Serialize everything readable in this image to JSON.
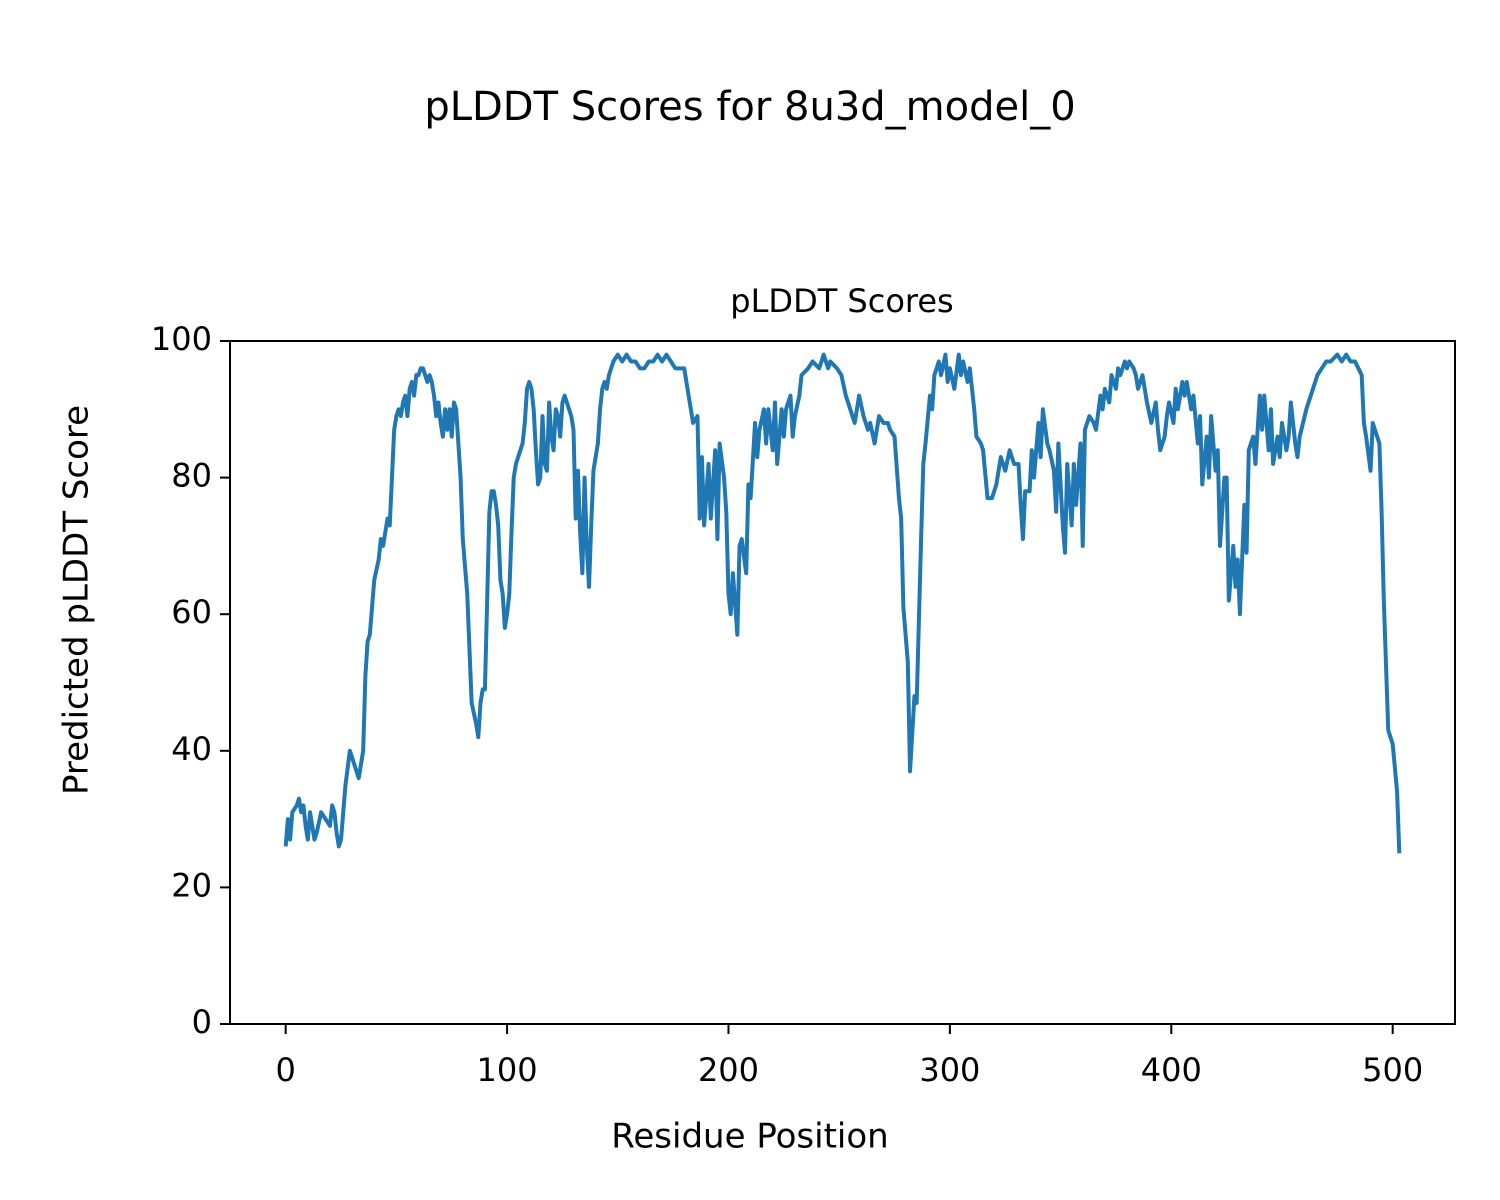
{
  "chart_data": {
    "type": "line",
    "title": "pLDDT Scores for 8u3d_model_0",
    "subtitle": "pLDDT Scores",
    "xlabel": "Residue Position",
    "ylabel": "Predicted pLDDT Score",
    "color": "#1f77b4",
    "grid": false,
    "xlim": [
      -25.15,
      528.15
    ],
    "ylim": [
      0,
      100
    ],
    "xticks": [
      0,
      100,
      200,
      300,
      400,
      500
    ],
    "yticks": [
      0,
      20,
      40,
      60,
      80,
      100
    ],
    "x": [
      0,
      1,
      2,
      3,
      5,
      6,
      7,
      8,
      9,
      10,
      11,
      12,
      13,
      14,
      16,
      18,
      20,
      21,
      22,
      23,
      24,
      25,
      26,
      27,
      29,
      31,
      33,
      35,
      36,
      37,
      38,
      39,
      40,
      42,
      43,
      44,
      45,
      46,
      47,
      48,
      49,
      50,
      51,
      52,
      53,
      54,
      55,
      56,
      57,
      58,
      59,
      60,
      61,
      62,
      63,
      64,
      65,
      66,
      67,
      68,
      69,
      70,
      71,
      72,
      73,
      74,
      75,
      76,
      77,
      78,
      79,
      80,
      82,
      84,
      86,
      87,
      88,
      89,
      90,
      91,
      92,
      93,
      94,
      95,
      96,
      97,
      98,
      99,
      100,
      101,
      102,
      103,
      104,
      105,
      106,
      107,
      108,
      109,
      110,
      111,
      112,
      113,
      114,
      115,
      116,
      117,
      118,
      119,
      120,
      121,
      122,
      123,
      124,
      125,
      126,
      127,
      128,
      129,
      130,
      131,
      132,
      133,
      134,
      135,
      136,
      137,
      138,
      139,
      140,
      141,
      142,
      143,
      144,
      145,
      146,
      147,
      148,
      150,
      152,
      154,
      156,
      158,
      160,
      162,
      164,
      166,
      168,
      170,
      172,
      174,
      176,
      178,
      180,
      182,
      184,
      186,
      187,
      188,
      189,
      191,
      192,
      194,
      195,
      196,
      198,
      199,
      200,
      201,
      202,
      204,
      205,
      206,
      208,
      209,
      210,
      212,
      213,
      214,
      216,
      217,
      218,
      220,
      221,
      222,
      224,
      225,
      226,
      228,
      229,
      230,
      232,
      233,
      236,
      238,
      241,
      243,
      245,
      246,
      249,
      251,
      253,
      255,
      257,
      259,
      261,
      263,
      264,
      266,
      268,
      270,
      272,
      273,
      275,
      277,
      278,
      279,
      281,
      282,
      284,
      285,
      287,
      288,
      289,
      291,
      292,
      293,
      295,
      296,
      298,
      299,
      300,
      302,
      304,
      305,
      306,
      308,
      309,
      311,
      312,
      314,
      315,
      317,
      319,
      321,
      323,
      325,
      327,
      329,
      331,
      332,
      333,
      334,
      336,
      337,
      338,
      340,
      341,
      342,
      344,
      345,
      347,
      348,
      349,
      351,
      352,
      353,
      355,
      356,
      357,
      359,
      360,
      361,
      363,
      365,
      366,
      368,
      369,
      370,
      372,
      373,
      375,
      376,
      377,
      379,
      380,
      381,
      383,
      384,
      385,
      387,
      389,
      391,
      393,
      394,
      395,
      397,
      398,
      399,
      401,
      402,
      403,
      405,
      406,
      407,
      409,
      410,
      412,
      413,
      414,
      416,
      417,
      418,
      420,
      421,
      422,
      424,
      425,
      426,
      428,
      429,
      430,
      431,
      433,
      434,
      435,
      437,
      438,
      440,
      441,
      442,
      444,
      445,
      446,
      448,
      449,
      450,
      452,
      453,
      454,
      456,
      457,
      458,
      461,
      463,
      466,
      468,
      470,
      472,
      475,
      477,
      479,
      481,
      483,
      486,
      487,
      488,
      490,
      491,
      492,
      494,
      495,
      496,
      498,
      499,
      500,
      502,
      503
    ],
    "values": [
      26,
      30,
      27,
      31,
      32,
      33,
      31,
      32,
      29,
      27,
      31,
      29,
      27,
      28,
      31,
      30,
      29,
      32,
      31,
      28,
      26,
      27,
      31,
      35,
      40,
      38,
      36,
      40,
      51,
      56,
      57,
      61,
      65,
      68,
      71,
      70,
      72,
      74,
      73,
      80,
      87,
      89,
      90,
      89,
      91,
      92,
      89,
      93,
      94,
      92,
      95,
      95,
      96,
      96,
      95,
      94,
      95,
      94,
      92,
      89,
      91,
      88,
      86,
      90,
      87,
      90,
      86,
      91,
      90,
      85,
      80,
      71,
      63,
      47,
      44,
      42,
      47,
      49,
      49,
      62,
      75,
      78,
      78,
      76,
      73,
      65,
      63,
      58,
      60,
      63,
      72,
      80,
      82,
      83,
      84,
      85,
      88,
      93,
      94,
      93,
      90,
      84,
      79,
      80,
      89,
      82,
      81,
      91,
      86,
      84,
      90,
      89,
      86,
      91,
      92,
      91,
      90,
      89,
      87,
      74,
      81,
      72,
      66,
      80,
      70,
      64,
      73,
      81,
      83,
      85,
      90,
      93,
      94,
      93,
      95,
      96,
      97,
      98,
      97,
      98,
      97,
      97,
      96,
      96,
      97,
      97,
      98,
      97,
      98,
      97,
      96,
      96,
      96,
      92,
      88,
      89,
      74,
      83,
      73,
      82,
      74,
      84,
      71,
      85,
      80,
      75,
      63,
      60,
      66,
      57,
      70,
      71,
      66,
      79,
      77,
      88,
      83,
      87,
      90,
      85,
      90,
      84,
      91,
      82,
      90,
      86,
      90,
      92,
      86,
      89,
      92,
      95,
      96,
      97,
      96,
      98,
      96,
      97,
      96,
      95,
      92,
      90,
      88,
      92,
      89,
      87,
      88,
      85,
      89,
      88,
      88,
      87,
      86,
      77,
      74,
      61,
      53,
      37,
      48,
      47,
      71,
      82,
      85,
      92,
      90,
      95,
      97,
      95,
      98,
      94,
      96,
      93,
      98,
      95,
      97,
      94,
      96,
      90,
      86,
      85,
      84,
      77,
      77,
      79,
      83,
      81,
      84,
      82,
      82,
      76,
      71,
      78,
      78,
      84,
      80,
      88,
      83,
      90,
      85,
      84,
      81,
      75,
      85,
      73,
      69,
      82,
      73,
      82,
      76,
      85,
      70,
      87,
      89,
      88,
      87,
      92,
      90,
      93,
      91,
      95,
      93,
      96,
      95,
      97,
      96,
      97,
      96,
      95,
      93,
      95,
      91,
      88,
      91,
      87,
      84,
      86,
      89,
      91,
      88,
      93,
      90,
      94,
      92,
      94,
      90,
      92,
      85,
      89,
      79,
      86,
      80,
      89,
      81,
      84,
      70,
      80,
      80,
      62,
      70,
      64,
      68,
      60,
      76,
      69,
      84,
      86,
      82,
      92,
      87,
      92,
      84,
      90,
      82,
      86,
      83,
      88,
      84,
      86,
      91,
      85,
      83,
      86,
      90,
      92,
      95,
      96,
      97,
      97,
      98,
      97,
      98,
      97,
      97,
      95,
      88,
      86,
      81,
      88,
      87,
      85,
      75,
      62,
      43,
      42,
      41,
      34,
      25
    ]
  }
}
